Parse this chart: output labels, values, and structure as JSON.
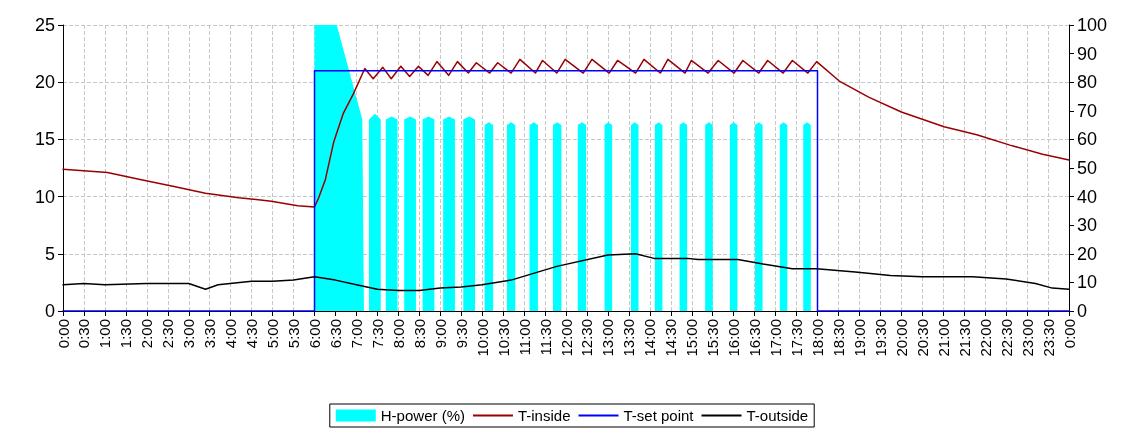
{
  "chart_data": {
    "type": "line",
    "xlim": [
      0,
      24
    ],
    "xticks": [
      {
        "value": 0,
        "label": "0:00"
      },
      {
        "value": 0.5,
        "label": "0:30"
      },
      {
        "value": 1,
        "label": "1:00"
      },
      {
        "value": 1.5,
        "label": "1:30"
      },
      {
        "value": 2,
        "label": "2:00"
      },
      {
        "value": 2.5,
        "label": "2:30"
      },
      {
        "value": 3,
        "label": "3:00"
      },
      {
        "value": 3.5,
        "label": "3:30"
      },
      {
        "value": 4,
        "label": "4:00"
      },
      {
        "value": 4.5,
        "label": "4:30"
      },
      {
        "value": 5,
        "label": "5:00"
      },
      {
        "value": 5.5,
        "label": "5:30"
      },
      {
        "value": 6,
        "label": "6:00"
      },
      {
        "value": 6.5,
        "label": "6:30"
      },
      {
        "value": 7,
        "label": "7:00"
      },
      {
        "value": 7.5,
        "label": "7:30"
      },
      {
        "value": 8,
        "label": "8:00"
      },
      {
        "value": 8.5,
        "label": "8:30"
      },
      {
        "value": 9,
        "label": "9:00"
      },
      {
        "value": 9.5,
        "label": "9:30"
      },
      {
        "value": 10,
        "label": "10:00"
      },
      {
        "value": 10.5,
        "label": "10:30"
      },
      {
        "value": 11,
        "label": "11:00"
      },
      {
        "value": 11.5,
        "label": "11:30"
      },
      {
        "value": 12,
        "label": "12:00"
      },
      {
        "value": 12.5,
        "label": "12:30"
      },
      {
        "value": 13,
        "label": "13:00"
      },
      {
        "value": 13.5,
        "label": "13:30"
      },
      {
        "value": 14,
        "label": "14:00"
      },
      {
        "value": 14.5,
        "label": "14:30"
      },
      {
        "value": 15,
        "label": "15:00"
      },
      {
        "value": 15.5,
        "label": "15:30"
      },
      {
        "value": 16,
        "label": "16:00"
      },
      {
        "value": 16.5,
        "label": "16:30"
      },
      {
        "value": 17,
        "label": "17:00"
      },
      {
        "value": 17.5,
        "label": "17:30"
      },
      {
        "value": 18,
        "label": "18:00"
      },
      {
        "value": 18.5,
        "label": "18:30"
      },
      {
        "value": 19,
        "label": "19:00"
      },
      {
        "value": 19.5,
        "label": "19:30"
      },
      {
        "value": 20,
        "label": "20:00"
      },
      {
        "value": 20.5,
        "label": "20:30"
      },
      {
        "value": 21,
        "label": "21:00"
      },
      {
        "value": 21.5,
        "label": "21:30"
      },
      {
        "value": 22,
        "label": "22:00"
      },
      {
        "value": 22.5,
        "label": "22:30"
      },
      {
        "value": 23,
        "label": "23:00"
      },
      {
        "value": 23.5,
        "label": "23:30"
      },
      {
        "value": 24,
        "label": "0:00"
      }
    ],
    "ylim": [
      0,
      25
    ],
    "yticks": [
      0,
      5,
      10,
      15,
      20,
      25
    ],
    "y2lim": [
      0,
      100
    ],
    "y2ticks": [
      0,
      10,
      20,
      30,
      40,
      50,
      60,
      70,
      80,
      90,
      100
    ],
    "grid": true,
    "legend": "bottom",
    "marker": "none",
    "line_style": "solid",
    "series": [
      {
        "name": "H-power (%)",
        "type": "area",
        "axis": "y2",
        "color": "#00ffff",
        "x": [
          0,
          6,
          6,
          6.53,
          7.14,
          7.18,
          7.3,
          7.3,
          7.44,
          7.58,
          7.58,
          7.7,
          7.7,
          7.84,
          7.98,
          7.98,
          8.14,
          8.14,
          8.28,
          8.42,
          8.42,
          8.58,
          8.58,
          8.72,
          8.86,
          8.86,
          9.07,
          9.07,
          9.21,
          9.35,
          9.35,
          9.55,
          9.55,
          9.69,
          9.83,
          9.83,
          10.06,
          10.06,
          10.16,
          10.26,
          10.26,
          10.59,
          10.59,
          10.69,
          10.79,
          10.79,
          11.13,
          11.13,
          11.23,
          11.33,
          11.33,
          11.69,
          11.69,
          11.79,
          11.89,
          11.89,
          12.28,
          12.28,
          12.38,
          12.48,
          12.48,
          12.92,
          12.92,
          13.01,
          13.1,
          13.1,
          13.55,
          13.55,
          13.64,
          13.73,
          13.73,
          14.12,
          14.12,
          14.21,
          14.3,
          14.3,
          14.71,
          14.71,
          14.8,
          14.89,
          14.89,
          15.32,
          15.32,
          15.41,
          15.5,
          15.5,
          15.91,
          15.91,
          16.0,
          16.09,
          16.09,
          16.51,
          16.51,
          16.6,
          16.69,
          16.69,
          17.1,
          17.1,
          17.19,
          17.28,
          17.28,
          17.66,
          17.66,
          17.75,
          17.84,
          17.84,
          24
        ],
        "values": [
          0,
          0,
          100,
          100,
          67,
          0,
          0,
          67,
          69,
          67,
          0,
          0,
          67,
          68,
          67,
          0,
          0,
          67,
          68,
          67,
          0,
          0,
          67,
          68,
          67,
          0,
          0,
          67,
          68,
          67,
          0,
          0,
          67,
          68,
          67,
          0,
          0,
          65,
          66,
          65,
          0,
          0,
          65,
          66,
          65,
          0,
          0,
          65,
          66,
          65,
          0,
          0,
          65,
          66,
          65,
          0,
          0,
          65,
          66,
          65,
          0,
          0,
          65,
          66,
          65,
          0,
          0,
          65,
          66,
          65,
          0,
          0,
          65,
          66,
          65,
          0,
          0,
          65,
          66,
          65,
          0,
          0,
          65,
          66,
          65,
          0,
          0,
          65,
          66,
          65,
          0,
          0,
          65,
          66,
          65,
          0,
          0,
          65,
          66,
          65,
          0,
          0,
          65,
          66,
          65,
          0,
          0
        ]
      },
      {
        "name": "T-inside",
        "color": "#990000",
        "x": [
          0,
          1.06,
          1.84,
          2.62,
          3.4,
          4.19,
          4.97,
          5.6,
          6.0,
          6.1,
          6.26,
          6.46,
          6.69,
          6.93,
          7.2,
          7.4,
          7.63,
          7.83,
          8.06,
          8.27,
          8.48,
          8.71,
          8.92,
          9.2,
          9.41,
          9.67,
          9.86,
          10.18,
          10.37,
          10.69,
          10.9,
          11.27,
          11.44,
          11.78,
          11.98,
          12.41,
          12.62,
          13.03,
          13.23,
          13.66,
          13.86,
          14.25,
          14.43,
          14.84,
          14.99,
          15.39,
          15.63,
          16.01,
          16.22,
          16.6,
          16.81,
          17.18,
          17.4,
          17.77,
          17.98,
          18.52,
          19.22,
          20.0,
          21.02,
          21.8,
          22.59,
          23.37,
          24
        ],
        "values": [
          12.4,
          12.1,
          11.5,
          10.9,
          10.3,
          9.9,
          9.6,
          9.2,
          9.1,
          9.9,
          11.5,
          14.8,
          17.3,
          19.0,
          21.2,
          20.3,
          21.3,
          20.3,
          21.4,
          20.5,
          21.4,
          20.6,
          21.8,
          20.6,
          21.8,
          20.8,
          21.7,
          20.8,
          21.7,
          20.8,
          22.0,
          20.8,
          21.9,
          20.8,
          22.0,
          20.8,
          22.0,
          20.8,
          21.9,
          20.8,
          22.0,
          20.8,
          22.0,
          20.8,
          21.9,
          20.8,
          21.9,
          20.8,
          21.9,
          20.8,
          21.9,
          20.8,
          21.9,
          20.8,
          21.8,
          20.1,
          18.7,
          17.4,
          16.1,
          15.4,
          14.5,
          13.7,
          13.2
        ]
      },
      {
        "name": "T-set point",
        "color": "#0000ff",
        "x": [
          0,
          6,
          6,
          18,
          18,
          24
        ],
        "values": [
          0,
          0,
          21,
          21,
          0,
          0
        ]
      },
      {
        "name": "T-outside",
        "color": "#000000",
        "x": [
          0,
          0.5,
          1,
          2,
          3,
          3.4,
          3.7,
          4.5,
          5,
          5.5,
          6,
          6.5,
          7,
          7.5,
          8,
          8.5,
          9,
          9.5,
          10,
          10.69,
          11.78,
          13.0,
          13.66,
          14.1,
          14.9,
          15.15,
          16.1,
          16.7,
          17.4,
          17.98,
          18.9,
          19.74,
          20.5,
          21.7,
          22.5,
          23.2,
          23.6,
          24
        ],
        "values": [
          2.3,
          2.4,
          2.3,
          2.4,
          2.4,
          1.9,
          2.3,
          2.6,
          2.6,
          2.7,
          3.0,
          2.7,
          2.3,
          1.9,
          1.8,
          1.8,
          2.0,
          2.1,
          2.3,
          2.7,
          3.9,
          4.9,
          5.0,
          4.6,
          4.6,
          4.5,
          4.5,
          4.1,
          3.7,
          3.7,
          3.4,
          3.1,
          3.0,
          3.0,
          2.8,
          2.4,
          2.0,
          1.9
        ]
      }
    ]
  }
}
